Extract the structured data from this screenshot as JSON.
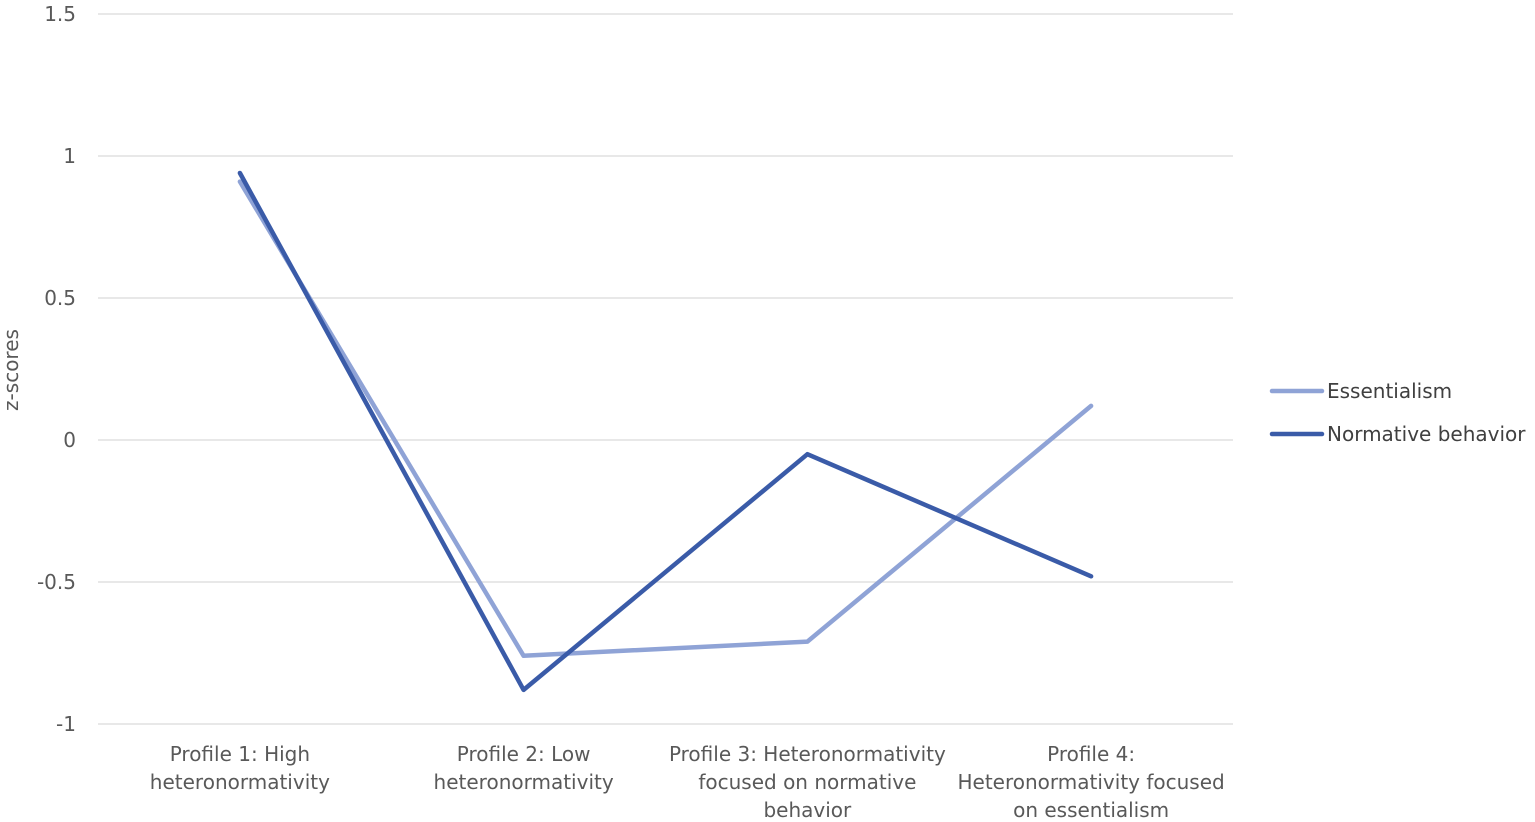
{
  "chart_data": {
    "type": "line",
    "ylabel": "z-scores",
    "ylim": [
      -1,
      1.5
    ],
    "yticks": [
      "1.5",
      "1",
      "0.5",
      "0",
      "-0.5",
      "-1"
    ],
    "ytick_values": [
      1.5,
      1,
      0.5,
      0,
      -0.5,
      -1
    ],
    "categories": [
      [
        "Profile 1: High",
        "heteronormativity"
      ],
      [
        "Profile 2: Low",
        "heteronormativity"
      ],
      [
        "Profile 3: Heteronormativity",
        "focused on normative",
        "behavior"
      ],
      [
        "Profile 4:",
        "Heteronormativity focused",
        "on essentialism"
      ]
    ],
    "series": [
      {
        "name": "Essentialism",
        "color": "#8fa3d6",
        "values": [
          0.91,
          -0.76,
          -0.71,
          0.12
        ]
      },
      {
        "name": "Normative behavior",
        "color": "#3a5ba8",
        "values": [
          0.94,
          -0.88,
          -0.05,
          -0.48
        ]
      }
    ],
    "grid": true,
    "legend_position": "right"
  }
}
